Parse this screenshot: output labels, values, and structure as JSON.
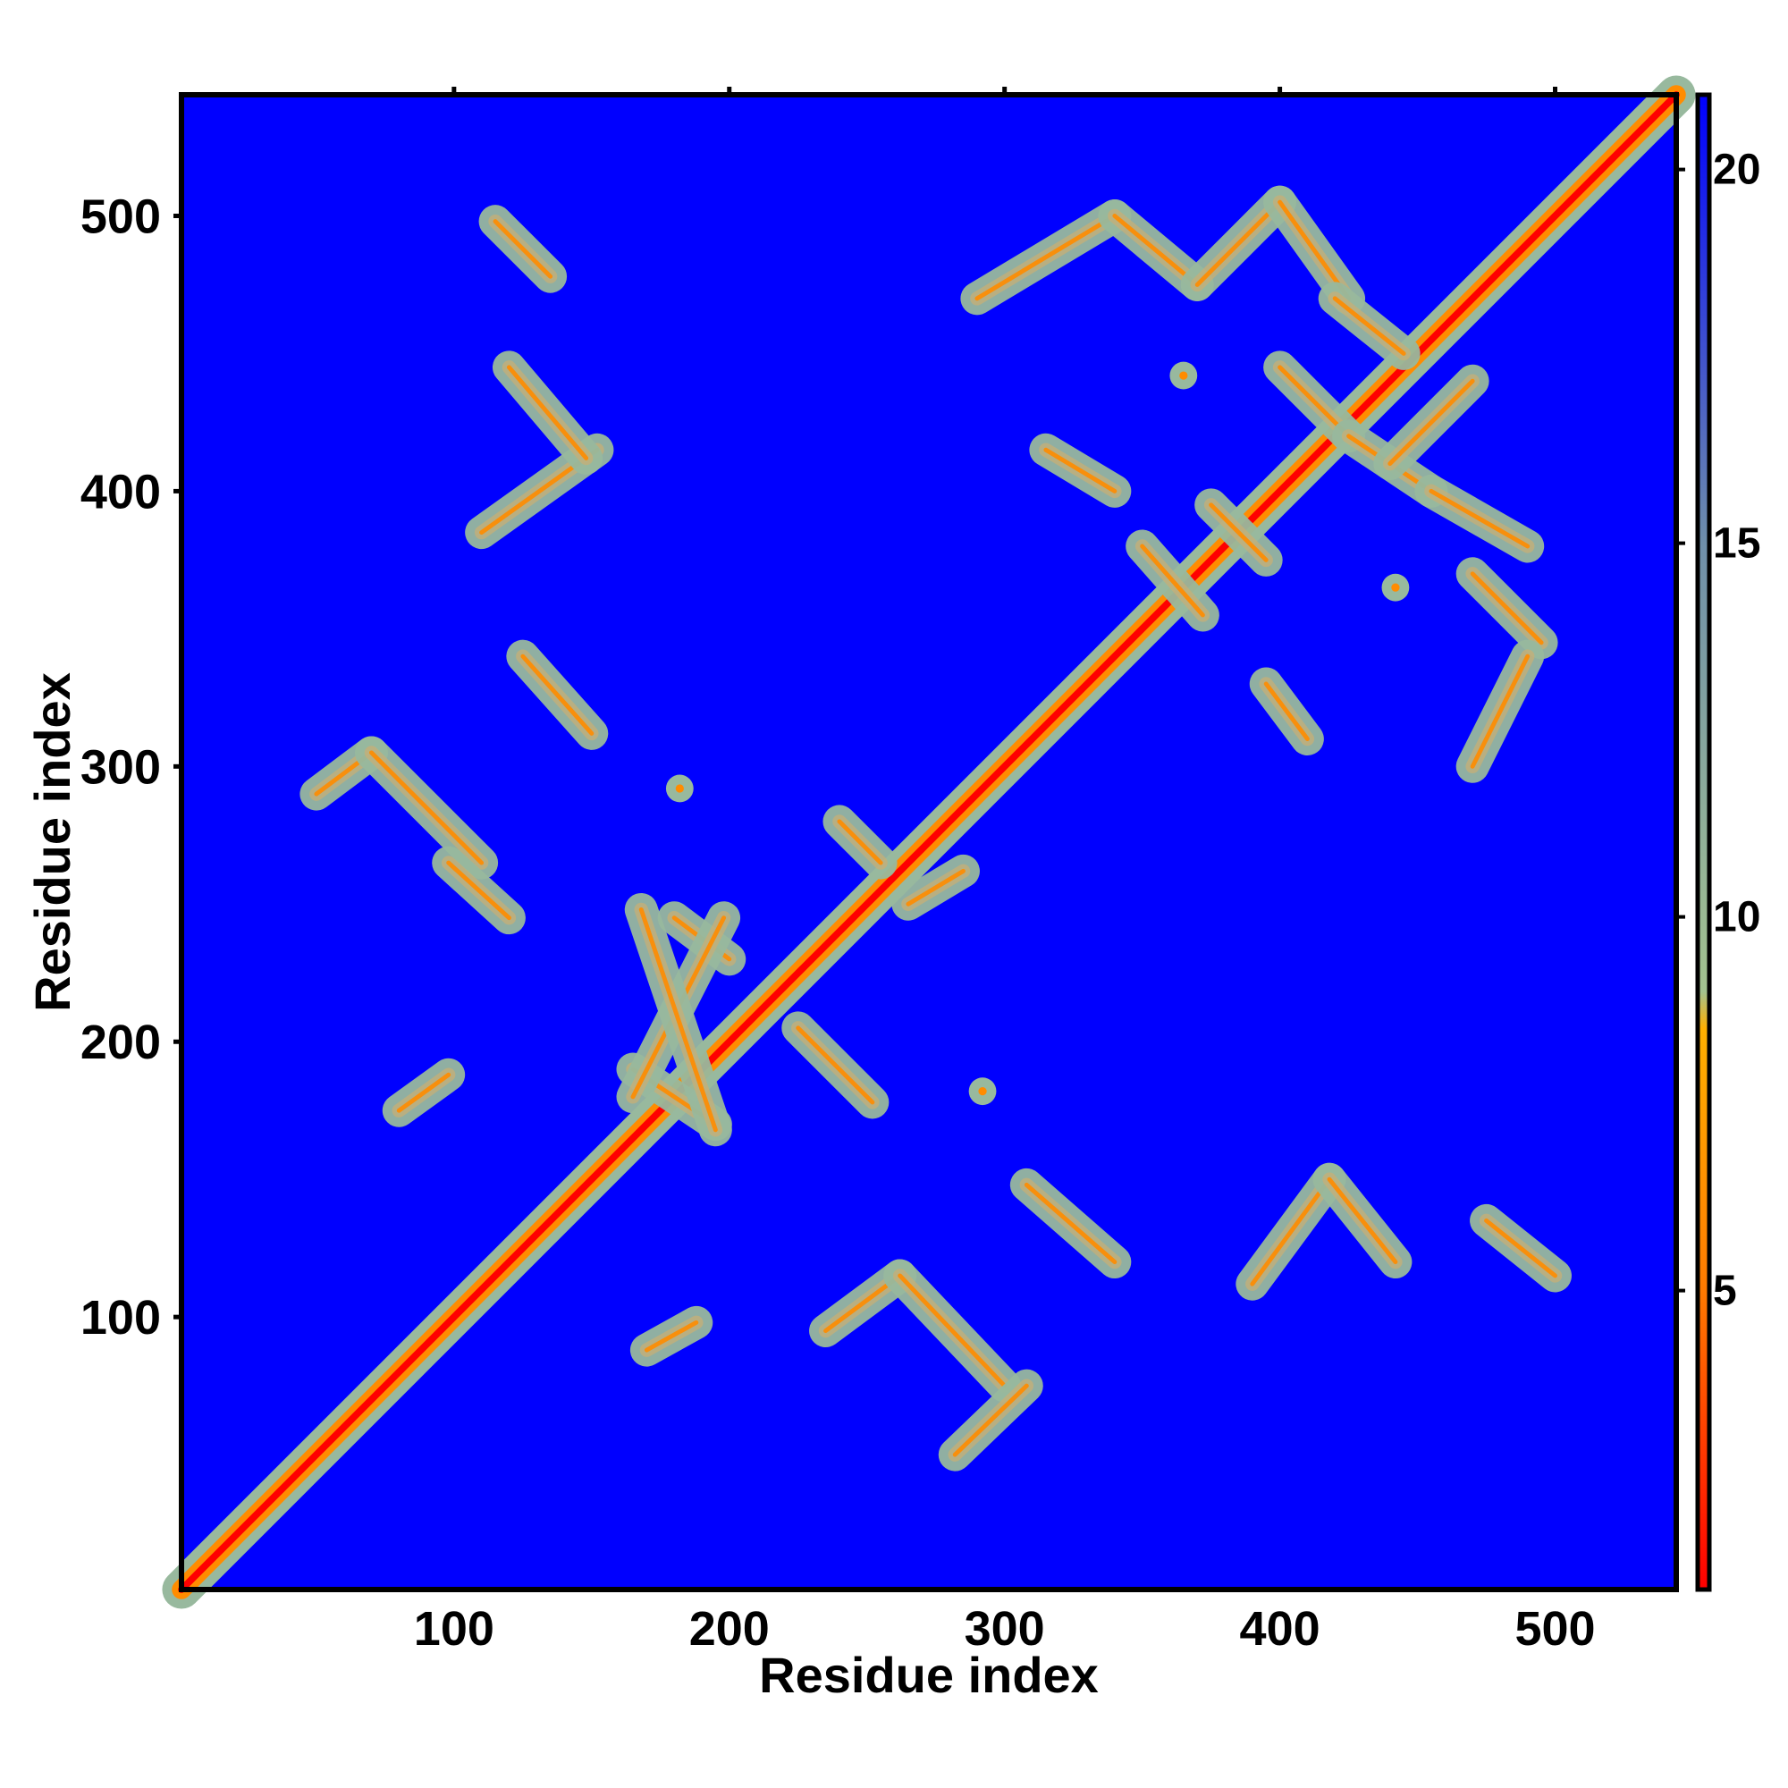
{
  "chart_data": {
    "type": "heatmap",
    "title": "",
    "xlabel": "Residue index",
    "ylabel": "Residue index",
    "xlim": [
      1,
      544
    ],
    "ylim": [
      1,
      544
    ],
    "x_ticks": [
      100,
      200,
      300,
      400,
      500
    ],
    "y_ticks": [
      100,
      200,
      300,
      400,
      500
    ],
    "colorbar": {
      "ticks": [
        5,
        10,
        15,
        20
      ],
      "range": [
        1,
        21
      ],
      "colors": [
        "#ff0000",
        "#ff7a00",
        "#ffb000",
        "#a3c28f",
        "#6f8faa",
        "#0000ff"
      ],
      "stops": [
        1,
        5,
        8.5,
        9,
        15,
        21
      ]
    },
    "colors": {
      "background": "#0000ff",
      "diagonal": "#ff0000",
      "contact_core": "#ff8c00",
      "contact_halo": "#98b99e"
    },
    "contact_segments": [
      {
        "from": [
          1,
          1
        ],
        "to": [
          544,
          544
        ]
      },
      {
        "from": [
          115,
          498
        ],
        "to": [
          135,
          478
        ]
      },
      {
        "from": [
          110,
          385
        ],
        "to": [
          152,
          415
        ]
      },
      {
        "from": [
          120,
          445
        ],
        "to": [
          148,
          412
        ]
      },
      {
        "from": [
          125,
          340
        ],
        "to": [
          150,
          312
        ]
      },
      {
        "from": [
          50,
          290
        ],
        "to": [
          70,
          305
        ]
      },
      {
        "from": [
          70,
          305
        ],
        "to": [
          110,
          265
        ]
      },
      {
        "from": [
          98,
          265
        ],
        "to": [
          120,
          245
        ]
      },
      {
        "from": [
          80,
          175
        ],
        "to": [
          98,
          188
        ]
      },
      {
        "from": [
          170,
          88
        ],
        "to": [
          188,
          98
        ]
      },
      {
        "from": [
          235,
          95
        ],
        "to": [
          262,
          115
        ]
      },
      {
        "from": [
          262,
          115
        ],
        "to": [
          300,
          75
        ]
      },
      {
        "from": [
          282,
          50
        ],
        "to": [
          308,
          75
        ]
      },
      {
        "from": [
          308,
          148
        ],
        "to": [
          340,
          120
        ]
      },
      {
        "from": [
          390,
          112
        ],
        "to": [
          418,
          150
        ]
      },
      {
        "from": [
          418,
          150
        ],
        "to": [
          442,
          120
        ]
      },
      {
        "from": [
          475,
          135
        ],
        "to": [
          500,
          115
        ]
      },
      {
        "from": [
          165,
          190
        ],
        "to": [
          195,
          170
        ]
      },
      {
        "from": [
          180,
          245
        ],
        "to": [
          200,
          230
        ]
      },
      {
        "from": [
          225,
          205
        ],
        "to": [
          252,
          178
        ]
      },
      {
        "from": [
          165,
          180
        ],
        "to": [
          198,
          245
        ]
      },
      {
        "from": [
          195,
          168
        ],
        "to": [
          168,
          248
        ]
      },
      {
        "from": [
          240,
          280
        ],
        "to": [
          255,
          265
        ]
      },
      {
        "from": [
          265,
          250
        ],
        "to": [
          285,
          262
        ]
      },
      {
        "from": [
          290,
          470
        ],
        "to": [
          340,
          500
        ]
      },
      {
        "from": [
          340,
          500
        ],
        "to": [
          370,
          475
        ]
      },
      {
        "from": [
          370,
          475
        ],
        "to": [
          400,
          505
        ]
      },
      {
        "from": [
          400,
          505
        ],
        "to": [
          425,
          470
        ]
      },
      {
        "from": [
          315,
          415
        ],
        "to": [
          340,
          400
        ]
      },
      {
        "from": [
          350,
          380
        ],
        "to": [
          372,
          355
        ]
      },
      {
        "from": [
          375,
          395
        ],
        "to": [
          395,
          375
        ]
      },
      {
        "from": [
          395,
          330
        ],
        "to": [
          410,
          310
        ]
      },
      {
        "from": [
          420,
          470
        ],
        "to": [
          445,
          450
        ]
      },
      {
        "from": [
          400,
          445
        ],
        "to": [
          425,
          420
        ]
      },
      {
        "from": [
          425,
          420
        ],
        "to": [
          455,
          400
        ]
      },
      {
        "from": [
          455,
          400
        ],
        "to": [
          490,
          380
        ]
      },
      {
        "from": [
          470,
          370
        ],
        "to": [
          495,
          345
        ]
      },
      {
        "from": [
          470,
          300
        ],
        "to": [
          490,
          340
        ]
      },
      {
        "from": [
          440,
          410
        ],
        "to": [
          470,
          440
        ]
      }
    ],
    "contact_spots": [
      {
        "x": 365,
        "y": 442
      },
      {
        "x": 442,
        "y": 365
      },
      {
        "x": 182,
        "y": 292
      },
      {
        "x": 292,
        "y": 182
      }
    ]
  }
}
